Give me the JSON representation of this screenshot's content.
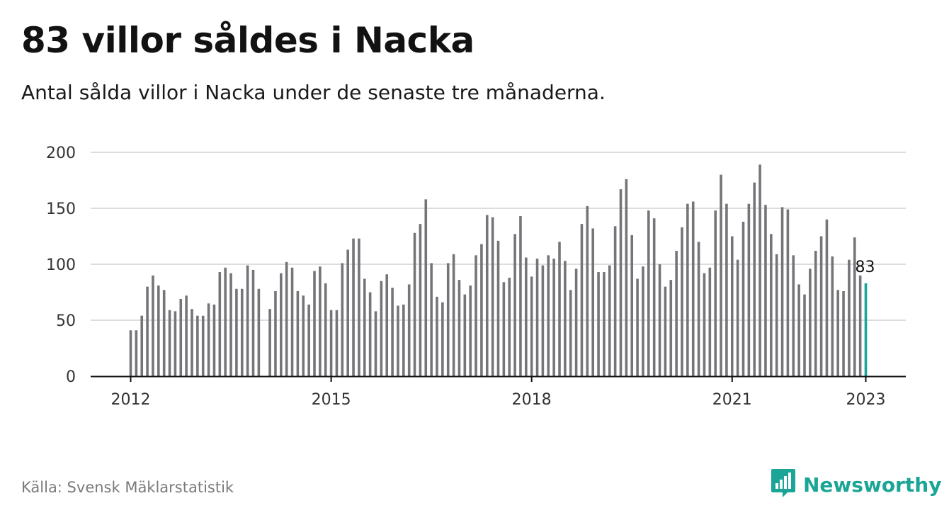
{
  "header": {
    "title": "83 villor såldes i Nacka",
    "subtitle": "Antal sålda villor i Nacka under de senaste tre månaderna."
  },
  "footer": {
    "source": "Källa: Svensk Mäklarstatistik",
    "brand": "Newsworthy",
    "brand_icon": "newsworthy-logo-icon"
  },
  "colors": {
    "bar": "#757579",
    "highlight": "#1aa596",
    "grid": "#dddddd",
    "axis": "#111111"
  },
  "chart_data": {
    "type": "bar",
    "title": "83 villor såldes i Nacka",
    "subtitle": "Antal sålda villor i Nacka under de senaste tre månaderna.",
    "xlabel": "",
    "ylabel": "",
    "ylim": [
      0,
      200
    ],
    "yticks": [
      "0",
      "50",
      "100",
      "150",
      "200"
    ],
    "xticks": [
      "2012",
      "2015",
      "2018",
      "2021",
      "2023"
    ],
    "x_start": "2012-01",
    "x_end": "2023-01",
    "grid": true,
    "legend": "none",
    "highlight_label": "83",
    "series": [
      {
        "values": [
          41,
          41,
          54,
          80,
          90,
          81,
          77,
          59,
          58,
          69,
          72,
          60,
          54,
          54,
          65,
          64,
          93,
          97,
          92,
          78,
          78,
          99,
          95,
          78,
          null,
          60,
          76,
          92,
          102,
          97,
          76,
          72,
          64,
          94,
          98,
          83,
          59,
          59,
          101,
          113,
          123,
          123,
          87,
          75,
          58,
          85,
          91,
          79,
          63,
          64,
          82,
          128,
          136,
          158,
          101,
          71,
          66,
          101,
          109,
          86,
          73,
          81,
          108,
          118,
          144,
          142,
          121,
          84,
          88,
          127,
          143,
          106,
          89,
          105,
          99,
          108,
          105,
          120,
          103,
          77,
          96,
          136,
          152,
          132,
          93,
          93,
          99,
          134,
          167,
          176,
          126,
          87,
          98,
          148,
          141,
          100,
          80,
          86,
          112,
          133,
          154,
          156,
          120,
          92,
          97,
          148,
          180,
          154,
          125,
          104,
          138,
          154,
          173,
          189,
          153,
          127,
          109,
          151,
          149,
          108,
          82,
          73,
          96,
          112,
          125,
          140,
          107,
          77,
          76,
          104,
          124,
          90,
          83
        ]
      }
    ]
  }
}
